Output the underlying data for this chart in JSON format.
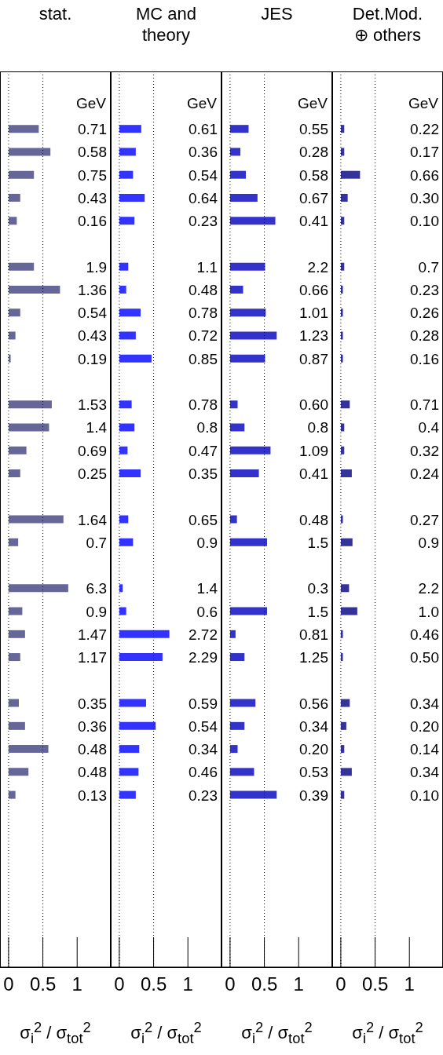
{
  "chart_data": [
    {
      "type": "bar",
      "orientation": "horizontal",
      "title": "stat.",
      "xlabel": "σ$_{i}$$^{2}$ / σ$_{tot}$$^{2}$",
      "annotations": [
        "GeV"
      ],
      "color": "#666699",
      "xlim": [
        -0.125,
        1.49
      ],
      "xticks": [
        0,
        0.5,
        1
      ],
      "ref_lines": [
        {
          "axis": "x",
          "value": 0,
          "line_style": "dotted"
        },
        {
          "axis": "x",
          "value": 0.5,
          "line_style": "dotted"
        }
      ],
      "categories": [
        null,
        null,
        "0.71",
        "0.58",
        "0.75",
        "0.43",
        "0.16",
        null,
        "1.9",
        "1.36",
        "0.54",
        "0.43",
        "0.19",
        null,
        "1.53",
        "1.4",
        "0.69",
        "0.25",
        null,
        "1.64",
        "0.7",
        null,
        "6.3",
        "0.9",
        "1.47",
        "1.17",
        null,
        "0.35",
        "0.36",
        "0.48",
        "0.48",
        "0.13",
        null,
        null,
        null,
        null,
        null,
        null,
        null
      ],
      "values": [
        null,
        null,
        0.44,
        0.61,
        0.37,
        0.17,
        0.12,
        null,
        0.37,
        0.75,
        0.17,
        0.1,
        0.03,
        null,
        0.63,
        0.59,
        0.26,
        0.17,
        null,
        0.8,
        0.14,
        null,
        0.87,
        0.2,
        0.24,
        0.17,
        null,
        0.15,
        0.24,
        0.58,
        0.29,
        0.1,
        null,
        null,
        null,
        null,
        null,
        null,
        null
      ]
    },
    {
      "type": "bar",
      "orientation": "horizontal",
      "title": "MC and\ntheory",
      "xlabel": "σ$_{i}$$^{2}$ / σ$_{tot}$$^{2}$",
      "annotations": [
        "GeV"
      ],
      "color": "#3333ff",
      "xlim": [
        -0.125,
        1.49
      ],
      "xticks": [
        0,
        0.5,
        1
      ],
      "ref_lines": [
        {
          "axis": "x",
          "value": 0,
          "line_style": "dotted"
        },
        {
          "axis": "x",
          "value": 0.5,
          "line_style": "dotted"
        }
      ],
      "categories": [
        null,
        null,
        "0.61",
        "0.36",
        "0.54",
        "0.64",
        "0.23",
        null,
        "1.1",
        "0.48",
        "0.78",
        "0.72",
        "0.85",
        null,
        "0.78",
        "0.8",
        "0.47",
        "0.35",
        null,
        "0.65",
        "0.9",
        null,
        "1.4",
        "0.6",
        "2.72",
        "2.29",
        null,
        "0.59",
        "0.54",
        "0.34",
        "0.46",
        "0.23",
        null,
        null,
        null,
        null,
        null,
        null,
        null
      ],
      "values": [
        null,
        null,
        0.32,
        0.24,
        0.2,
        0.37,
        0.22,
        null,
        0.13,
        0.1,
        0.31,
        0.24,
        0.47,
        null,
        0.18,
        0.22,
        0.12,
        0.31,
        null,
        0.13,
        0.2,
        null,
        0.05,
        0.1,
        0.73,
        0.63,
        null,
        0.39,
        0.53,
        0.29,
        0.28,
        0.24,
        null,
        null,
        null,
        null,
        null,
        null,
        null
      ]
    },
    {
      "type": "bar",
      "orientation": "horizontal",
      "title": "JES",
      "xlabel": "σ$_{i}$$^{2}$ / σ$_{tot}$$^{2}$",
      "annotations": [
        "GeV"
      ],
      "color": "#3333cc",
      "xlim": [
        -0.125,
        1.49
      ],
      "xticks": [
        0,
        0.5,
        1
      ],
      "ref_lines": [
        {
          "axis": "x",
          "value": 0,
          "line_style": "dotted"
        },
        {
          "axis": "x",
          "value": 0.5,
          "line_style": "dotted"
        }
      ],
      "categories": [
        null,
        null,
        "0.55",
        "0.28",
        "0.58",
        "0.67",
        "0.41",
        null,
        "2.2",
        "0.66",
        "1.01",
        "1.23",
        "0.87",
        null,
        "0.60",
        "0.8",
        "1.09",
        "0.41",
        null,
        "0.48",
        "1.5",
        null,
        "0.3",
        "1.5",
        "0.81",
        "1.25",
        null,
        "0.56",
        "0.34",
        "0.20",
        "0.53",
        "0.39",
        null,
        null,
        null,
        null,
        null,
        null,
        null
      ],
      "values": [
        null,
        null,
        0.27,
        0.15,
        0.23,
        0.4,
        0.66,
        null,
        0.51,
        0.19,
        0.52,
        0.68,
        0.51,
        null,
        0.11,
        0.21,
        0.59,
        0.42,
        null,
        0.1,
        0.54,
        null,
        0,
        0.54,
        0.08,
        0.21,
        null,
        0.37,
        0.21,
        0.11,
        0.35,
        0.68,
        null,
        null,
        null,
        null,
        null,
        null,
        null
      ]
    },
    {
      "type": "bar",
      "orientation": "horizontal",
      "title": "Det.Mod.\n⊕ others",
      "xlabel": "σ$_{i}$$^{2}$ / σ$_{tot}$$^{2}$",
      "annotations": [
        "GeV"
      ],
      "color": "#333399",
      "xlim": [
        -0.125,
        1.49
      ],
      "xticks": [
        0,
        0.5,
        1
      ],
      "ref_lines": [
        {
          "axis": "x",
          "value": 0,
          "line_style": "dotted"
        },
        {
          "axis": "x",
          "value": 0.5,
          "line_style": "dotted"
        }
      ],
      "categories": [
        null,
        null,
        "0.22",
        "0.17",
        "0.66",
        "0.30",
        "0.10",
        null,
        "0.7",
        "0.23",
        "0.26",
        "0.28",
        "0.16",
        null,
        "0.71",
        "0.4",
        "0.32",
        "0.24",
        null,
        "0.27",
        "0.9",
        null,
        "2.2",
        "1.0",
        "0.46",
        "0.50",
        null,
        "0.34",
        "0.20",
        "0.14",
        "0.34",
        "0.10",
        null,
        null,
        null,
        null,
        null,
        null,
        null
      ],
      "values": [
        null,
        null,
        0.05,
        0.05,
        0.28,
        0.1,
        0.05,
        null,
        0.05,
        0.03,
        0.03,
        0.03,
        0.03,
        null,
        0.13,
        0.05,
        0.05,
        0.16,
        null,
        0.03,
        0.17,
        null,
        0.12,
        0.24,
        0.03,
        0.03,
        null,
        0.13,
        0.08,
        0.05,
        0.16,
        0.05,
        null,
        null,
        null,
        null,
        null,
        null,
        null
      ]
    }
  ]
}
